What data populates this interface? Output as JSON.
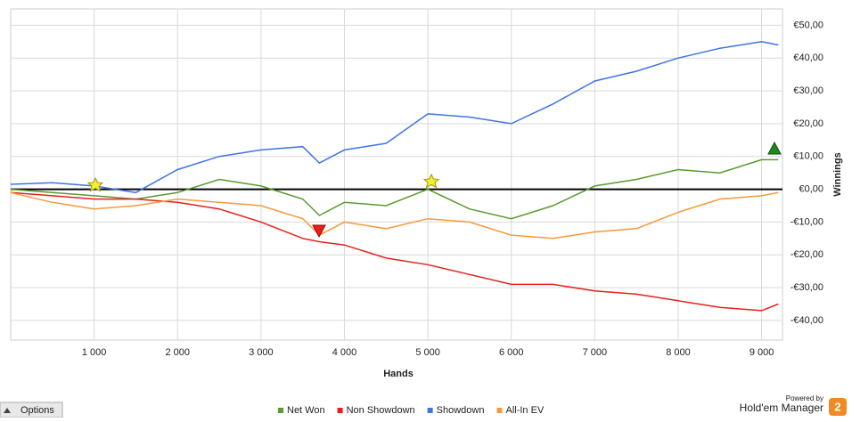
{
  "chart_data": {
    "type": "line",
    "x_label": "Hands",
    "y_label": "Winnings",
    "x": [
      0,
      500,
      1000,
      1500,
      2000,
      2500,
      3000,
      3500,
      3700,
      4000,
      4500,
      5000,
      5500,
      6000,
      6500,
      7000,
      7500,
      8000,
      8500,
      9000,
      9200
    ],
    "series": [
      {
        "name": "Net Won",
        "color": "#5a9a2e",
        "values": [
          0,
          -1,
          -2,
          -3,
          -1,
          3,
          1,
          -3,
          -8,
          -4,
          -5,
          0,
          -6,
          -9,
          -5,
          1,
          3,
          6,
          5,
          9,
          9
        ]
      },
      {
        "name": "Non Showdown",
        "color": "#e8201c",
        "values": [
          -1,
          -2,
          -3,
          -3,
          -4,
          -6,
          -10,
          -15,
          -16,
          -17,
          -21,
          -23,
          -26,
          -29,
          -29,
          -31,
          -32,
          -34,
          -36,
          -37,
          -35
        ]
      },
      {
        "name": "Showdown",
        "color": "#3f74e6",
        "values": [
          1.5,
          2,
          1,
          -1,
          6,
          10,
          12,
          13,
          8,
          12,
          14,
          23,
          22,
          20,
          26,
          33,
          36,
          40,
          43,
          45,
          44
        ]
      },
      {
        "name": "All-In EV",
        "color": "#f39a3c",
        "values": [
          -1,
          -4,
          -6,
          -5,
          -3,
          -4,
          -5,
          -9,
          -14,
          -10,
          -12,
          -9,
          -10,
          -14,
          -15,
          -13,
          -12,
          -7,
          -3,
          -2,
          -1
        ]
      }
    ],
    "xlim": [
      0,
      9250
    ],
    "ylim": [
      -46,
      55
    ],
    "xticks": [
      {
        "value": 1000,
        "label": "1 000"
      },
      {
        "value": 2000,
        "label": "2 000"
      },
      {
        "value": 3000,
        "label": "3 000"
      },
      {
        "value": 4000,
        "label": "4 000"
      },
      {
        "value": 5000,
        "label": "5 000"
      },
      {
        "value": 6000,
        "label": "6 000"
      },
      {
        "value": 7000,
        "label": "7 000"
      },
      {
        "value": 8000,
        "label": "8 000"
      },
      {
        "value": 9000,
        "label": "9 000"
      }
    ],
    "yticks": [
      {
        "value": -40,
        "label": "-€40,00"
      },
      {
        "value": -30,
        "label": "-€30,00"
      },
      {
        "value": -20,
        "label": "-€20,00"
      },
      {
        "value": -10,
        "label": "-€10,00"
      },
      {
        "value": 0,
        "label": "€0,00"
      },
      {
        "value": 10,
        "label": "€10,00"
      },
      {
        "value": 20,
        "label": "€20,00"
      },
      {
        "value": 30,
        "label": "€30,00"
      },
      {
        "value": 40,
        "label": "€40,00"
      },
      {
        "value": 50,
        "label": "€50,00"
      }
    ],
    "grid": true,
    "legend": "bottom"
  },
  "ui": {
    "options_button": "Options",
    "powered_by": "Powered by",
    "brand": "Hold'em Manager",
    "brand_logo": "2"
  }
}
